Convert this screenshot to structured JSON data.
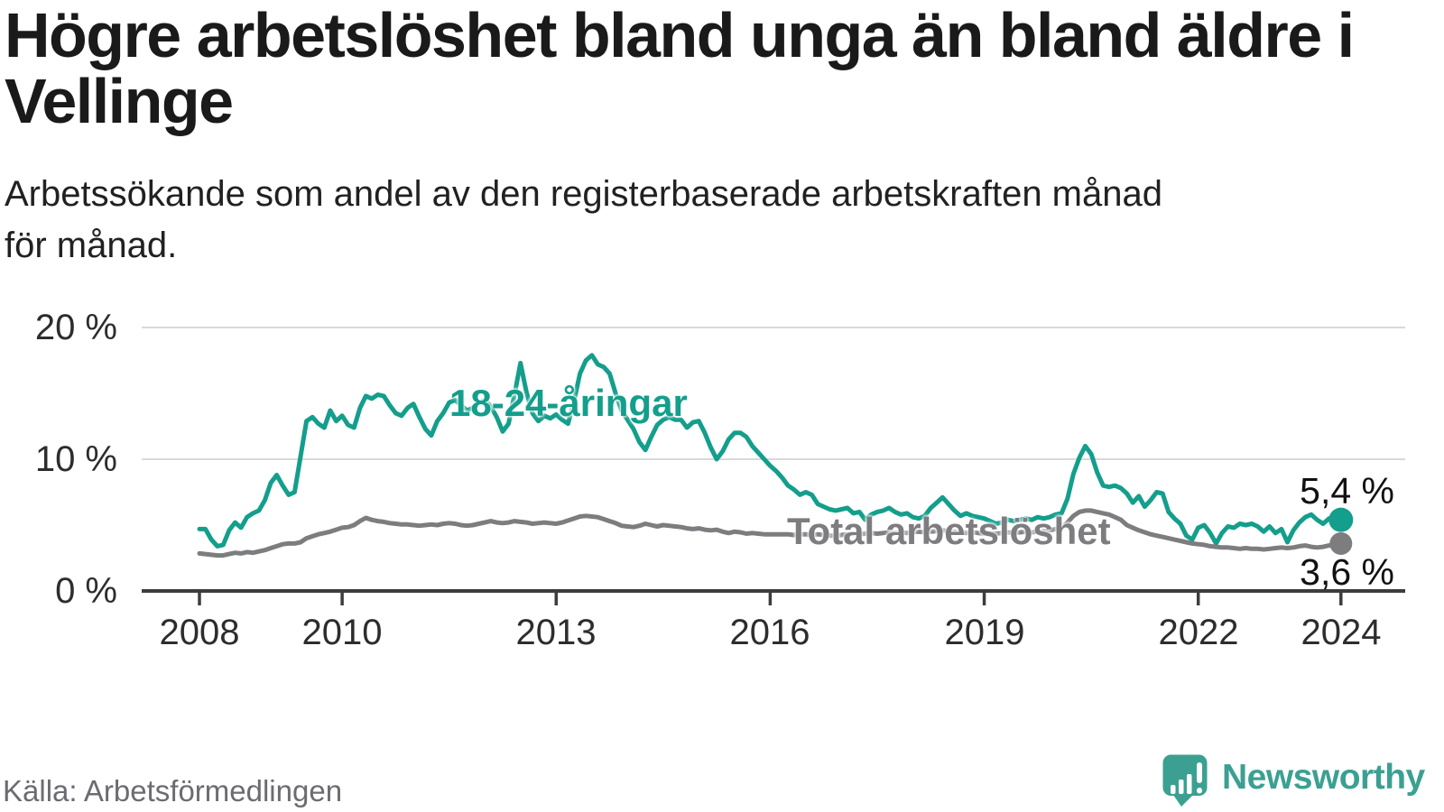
{
  "header": {
    "title_line1": "Högre arbetslöshet bland unga än bland äldre i",
    "title_line2": "Vellinge",
    "subtitle_line1": "Arbetssökande som andel av den registerbaserade arbetskraften månad",
    "subtitle_line2": "för månad."
  },
  "footer": {
    "source": "Källa: Arbetsförmedlingen",
    "brand_name": "Newsworthy",
    "logo_icon": "newsworthy-speech-bubble-barchart-logo"
  },
  "colors": {
    "youth_line": "#149e8c",
    "total_line": "#7d7d80",
    "grid": "#d9d9d9",
    "axis": "#3d3d3d",
    "tick_label": "#2d2d2d",
    "end_label": "#111111",
    "source_text": "#6b6b72",
    "brand_teal": "#3ba092",
    "background": "#ffffff"
  },
  "chart_data": {
    "type": "line",
    "title": "Högre arbetslöshet bland unga än bland äldre i Vellinge",
    "subtitle": "Arbetssökande som andel av den registerbaserade arbetskraften månad för månad.",
    "x_unit": "year, monthly points",
    "y_unit": "%",
    "x_start": 2008.0,
    "x_step": 0.0833333,
    "xlim": [
      2007.2,
      2025.4
    ],
    "ylim": [
      0,
      22
    ],
    "grid": "horizontal-only",
    "legend_position": "inline-labels-on-lines",
    "y_ticks": [
      {
        "value": 0,
        "label": "0 %"
      },
      {
        "value": 10,
        "label": "10 %"
      },
      {
        "value": 20,
        "label": "20 %"
      }
    ],
    "x_ticks": [
      {
        "year": 2008,
        "label": "2008"
      },
      {
        "year": 2010,
        "label": "2010"
      },
      {
        "year": 2013,
        "label": "2013"
      },
      {
        "year": 2016,
        "label": "2016"
      },
      {
        "year": 2019,
        "label": "2019"
      },
      {
        "year": 2022,
        "label": "2022"
      },
      {
        "year": 2024,
        "label": "2024"
      }
    ],
    "series": [
      {
        "name": "18-24-åringar",
        "color": "#149e8c",
        "end_label": "5,4 %",
        "last_value": 5.4,
        "values": [
          4.7,
          4.7,
          3.9,
          3.4,
          3.5,
          4.6,
          5.2,
          4.8,
          5.6,
          5.9,
          6.1,
          6.9,
          8.2,
          8.8,
          8.0,
          7.3,
          7.5,
          10.2,
          12.9,
          13.2,
          12.7,
          12.4,
          13.7,
          12.9,
          13.3,
          12.6,
          12.4,
          13.9,
          14.8,
          14.6,
          14.9,
          14.8,
          14.1,
          13.5,
          13.3,
          13.9,
          14.2,
          13.2,
          12.3,
          11.8,
          12.9,
          13.5,
          14.3,
          14.5,
          14.1,
          13.7,
          13.9,
          14.3,
          14.5,
          14.0,
          13.2,
          12.1,
          12.7,
          14.9,
          17.3,
          15.1,
          13.5,
          12.9,
          13.3,
          13.1,
          13.4,
          13.0,
          12.7,
          14.4,
          16.5,
          17.5,
          17.9,
          17.2,
          17.0,
          16.5,
          15.0,
          13.7,
          13.0,
          12.3,
          11.3,
          10.7,
          11.7,
          12.6,
          13.0,
          13.2,
          13.0,
          13.0,
          12.4,
          12.8,
          12.9,
          12.0,
          10.9,
          10.0,
          10.6,
          11.5,
          12.0,
          12.0,
          11.7,
          11.0,
          10.5,
          10.0,
          9.5,
          9.1,
          8.6,
          8.0,
          7.7,
          7.3,
          7.5,
          7.3,
          6.6,
          6.4,
          6.2,
          6.1,
          6.2,
          6.3,
          5.9,
          6.0,
          5.4,
          5.8,
          6.0,
          6.1,
          6.3,
          6.0,
          5.8,
          5.9,
          5.6,
          5.5,
          5.7,
          6.3,
          6.7,
          7.1,
          6.6,
          6.1,
          5.7,
          5.9,
          5.7,
          5.6,
          5.5,
          5.3,
          5.1,
          5.2,
          5.4,
          5.3,
          5.4,
          5.5,
          5.4,
          5.6,
          5.5,
          5.6,
          5.8,
          5.9,
          7.0,
          8.9,
          10.1,
          11.0,
          10.4,
          9.0,
          8.0,
          7.9,
          8.0,
          7.8,
          7.4,
          6.7,
          7.2,
          6.4,
          6.9,
          7.5,
          7.4,
          6.0,
          5.5,
          5.1,
          4.2,
          3.9,
          4.8,
          5.0,
          4.4,
          3.6,
          4.4,
          4.9,
          4.8,
          5.1,
          5.0,
          5.1,
          4.9,
          4.5,
          4.9,
          4.4,
          4.7,
          3.7,
          4.6,
          5.2,
          5.6,
          5.8,
          5.4,
          5.1,
          5.5,
          5.2,
          5.4
        ]
      },
      {
        "name": "Total arbetslöshet",
        "color": "#7d7d80",
        "end_label": "3,6 %",
        "last_value": 3.6,
        "values": [
          2.85,
          2.8,
          2.75,
          2.7,
          2.7,
          2.8,
          2.9,
          2.85,
          2.95,
          2.9,
          3.0,
          3.1,
          3.25,
          3.4,
          3.55,
          3.6,
          3.6,
          3.7,
          4.0,
          4.15,
          4.3,
          4.4,
          4.5,
          4.65,
          4.8,
          4.85,
          5.0,
          5.3,
          5.55,
          5.4,
          5.3,
          5.25,
          5.15,
          5.1,
          5.05,
          5.05,
          5.0,
          4.95,
          5.0,
          5.05,
          5.0,
          5.1,
          5.15,
          5.1,
          5.0,
          4.95,
          5.0,
          5.1,
          5.2,
          5.3,
          5.2,
          5.15,
          5.2,
          5.3,
          5.25,
          5.2,
          5.1,
          5.15,
          5.2,
          5.15,
          5.1,
          5.2,
          5.35,
          5.5,
          5.65,
          5.7,
          5.65,
          5.6,
          5.45,
          5.3,
          5.15,
          4.95,
          4.9,
          4.85,
          4.95,
          5.1,
          5.0,
          4.9,
          5.0,
          4.95,
          4.9,
          4.85,
          4.75,
          4.7,
          4.75,
          4.65,
          4.6,
          4.65,
          4.5,
          4.4,
          4.5,
          4.45,
          4.35,
          4.4,
          4.35,
          4.3,
          4.3,
          4.3,
          4.3,
          4.3,
          4.25,
          4.3,
          4.3,
          4.25,
          4.3,
          4.25,
          4.2,
          4.2,
          4.25,
          4.3,
          4.35,
          4.3,
          4.35,
          4.4,
          4.35,
          4.4,
          4.45,
          4.4,
          4.45,
          4.4,
          4.45,
          4.5,
          4.45,
          4.5,
          4.55,
          4.6,
          4.55,
          4.5,
          4.45,
          4.4,
          4.45,
          4.4,
          4.35,
          4.4,
          4.35,
          4.4,
          4.45,
          4.4,
          4.45,
          4.5,
          4.45,
          4.5,
          4.55,
          4.6,
          4.7,
          4.8,
          5.2,
          5.7,
          6.0,
          6.1,
          6.1,
          6.0,
          5.9,
          5.8,
          5.6,
          5.4,
          5.0,
          4.8,
          4.6,
          4.45,
          4.3,
          4.2,
          4.1,
          4.0,
          3.9,
          3.8,
          3.7,
          3.6,
          3.55,
          3.5,
          3.4,
          3.35,
          3.3,
          3.3,
          3.25,
          3.2,
          3.25,
          3.2,
          3.2,
          3.15,
          3.2,
          3.25,
          3.3,
          3.25,
          3.3,
          3.4,
          3.45,
          3.35,
          3.3,
          3.35,
          3.45,
          3.5,
          3.6
        ]
      }
    ]
  }
}
